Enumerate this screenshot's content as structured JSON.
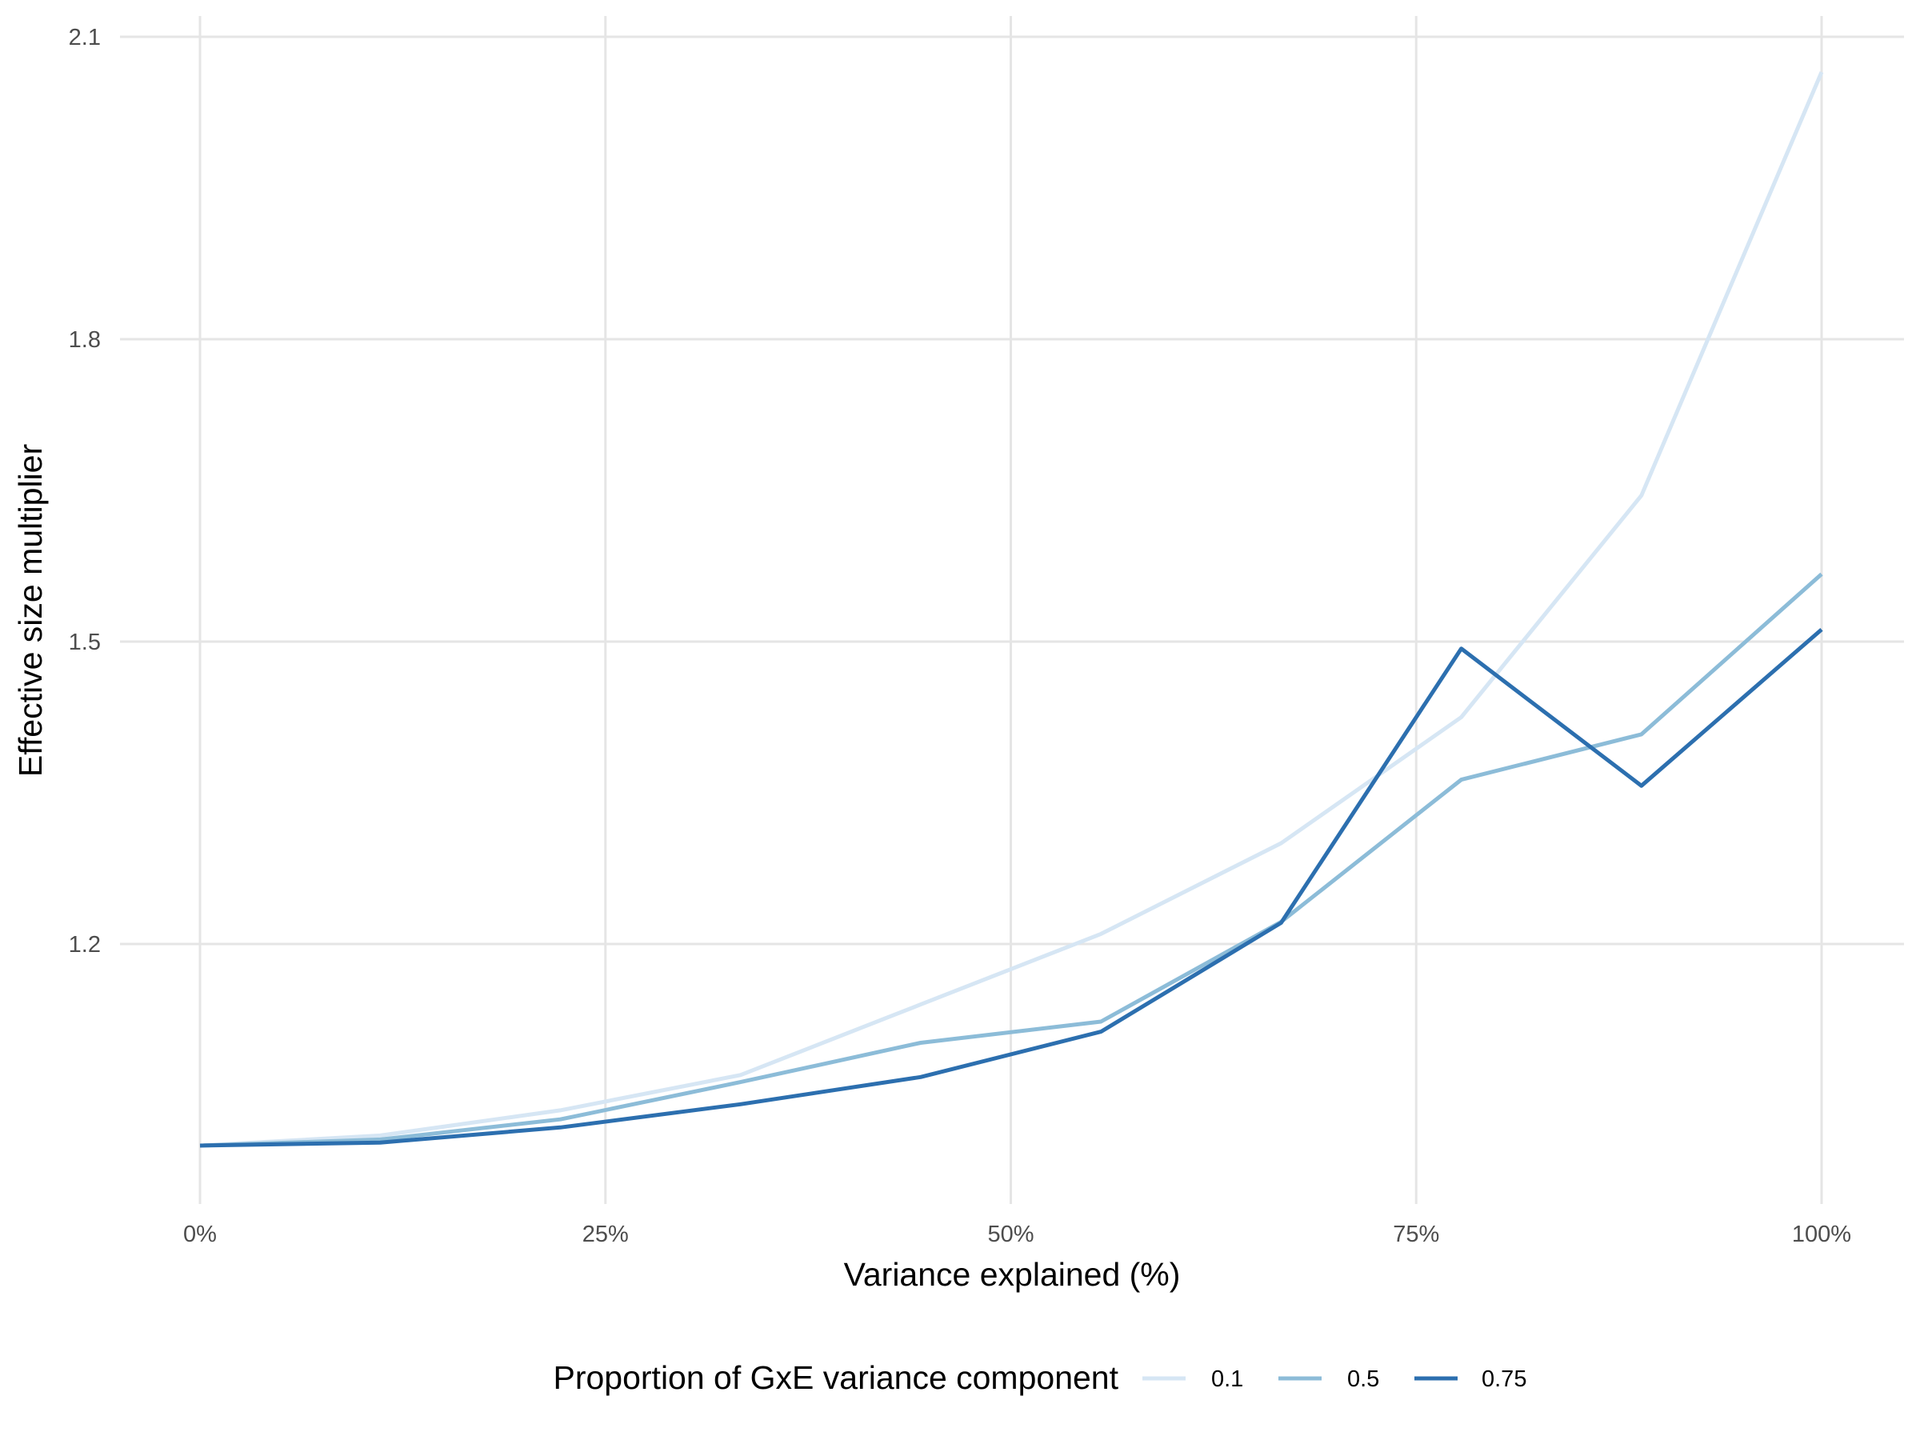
{
  "chart_data": {
    "type": "line",
    "title": "",
    "xlabel": "Variance explained (%)",
    "ylabel": "Effective size multiplier",
    "xlim": [
      -0.02,
      1.05
    ],
    "ylim": [
      0.95,
      2.12
    ],
    "x_ticks": [
      0,
      0.25,
      0.5,
      0.75,
      1.0
    ],
    "x_tick_labels": [
      "0%",
      "25%",
      "50%",
      "75%",
      "100%"
    ],
    "y_ticks": [
      1.2,
      1.5,
      1.8,
      2.1
    ],
    "y_tick_labels": [
      "1.2",
      "1.5",
      "1.8",
      "2.1"
    ],
    "grid": true,
    "legend": {
      "title": "Proportion of GxE variance component",
      "position": "bottom",
      "entries": [
        "0.1",
        "0.5",
        "0.75"
      ]
    },
    "x": [
      0,
      0.1111,
      0.2222,
      0.3333,
      0.4444,
      0.5556,
      0.6667,
      0.7778,
      0.8889,
      1.0
    ],
    "series": [
      {
        "name": "0.1",
        "color": "#d6e6f4",
        "values": [
          1.0,
          1.01,
          1.035,
          1.07,
          1.14,
          1.21,
          1.3,
          1.425,
          1.645,
          2.065
        ]
      },
      {
        "name": "0.5",
        "color": "#8cbcd8",
        "values": [
          1.0,
          1.006,
          1.026,
          1.063,
          1.102,
          1.123,
          1.222,
          1.363,
          1.408,
          1.567
        ]
      },
      {
        "name": "0.75",
        "color": "#2c6faf",
        "values": [
          1.0,
          1.003,
          1.018,
          1.041,
          1.068,
          1.113,
          1.221,
          1.493,
          1.357,
          1.512
        ]
      }
    ]
  }
}
